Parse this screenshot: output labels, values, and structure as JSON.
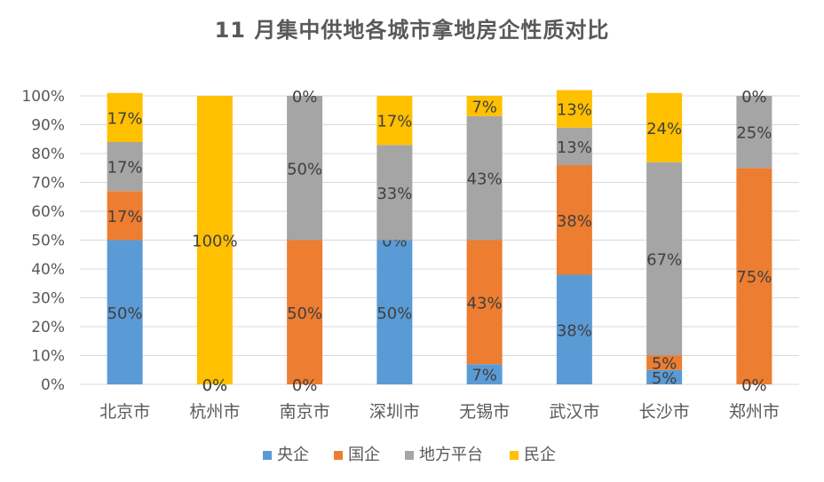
{
  "chart_data": {
    "type": "bar",
    "stacked": true,
    "title": "11 月集中供地各城市拿地房企性质对比",
    "categories": [
      "北京市",
      "杭州市",
      "南京市",
      "深圳市",
      "无锡市",
      "武汉市",
      "长沙市",
      "郑州市"
    ],
    "series": [
      {
        "name": "央企",
        "color": "#5B9BD5",
        "values": [
          50,
          0,
          0,
          50,
          7,
          38,
          5,
          0
        ]
      },
      {
        "name": "国企",
        "color": "#ED7D31",
        "values": [
          17,
          0,
          50,
          0,
          43,
          38,
          5,
          75
        ]
      },
      {
        "name": "地方平台",
        "color": "#A5A5A5",
        "values": [
          17,
          0,
          50,
          33,
          43,
          13,
          67,
          25
        ]
      },
      {
        "name": "民企",
        "color": "#FFC000",
        "values": [
          17,
          100,
          0,
          17,
          7,
          13,
          24,
          0
        ]
      }
    ],
    "data_labels": [
      [
        "50%",
        "17%",
        "17%",
        "17%"
      ],
      [
        "0%",
        "",
        "",
        "100%"
      ],
      [
        "",
        "50%",
        "50%",
        "0%"
      ],
      [
        "50%",
        "0%",
        "33%",
        "17%"
      ],
      [
        "7%",
        "43%",
        "43%",
        "7%"
      ],
      [
        "38%",
        "38%",
        "13%",
        "13%"
      ],
      [
        "5%",
        "5%",
        "67%",
        "24%"
      ],
      [
        "",
        "75%",
        "25%",
        "0%"
      ]
    ],
    "bottom_labels": [
      "",
      "0%",
      "0%",
      "",
      "",
      "",
      "",
      "0%"
    ],
    "y_ticks": [
      "0%",
      "10%",
      "20%",
      "30%",
      "40%",
      "50%",
      "60%",
      "70%",
      "80%",
      "90%",
      "100%"
    ],
    "ylim": [
      0,
      100
    ],
    "grid": true,
    "legend_position": "bottom"
  }
}
